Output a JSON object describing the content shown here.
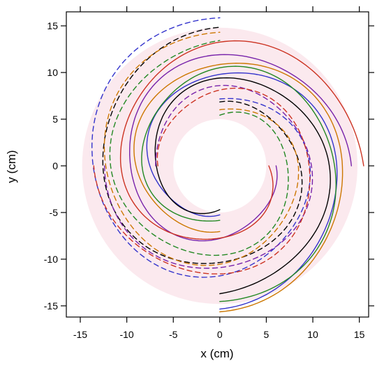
{
  "chart_data": {
    "type": "line",
    "title": "",
    "xlabel": "x (cm)",
    "ylabel": "y (cm)",
    "xlim": [
      -16.5,
      16
    ],
    "ylim": [
      -16.2,
      16.5
    ],
    "xticks": [
      -15,
      -10,
      -5,
      0,
      5,
      10,
      15
    ],
    "yticks": [
      -15,
      -10,
      -5,
      0,
      5,
      10,
      15
    ],
    "grid": false,
    "legend": "none",
    "background_band": {
      "color": "#fbe9ee",
      "inner_radius": 5.0,
      "outer_radius": 14.8
    },
    "series": [
      {
        "color": "#3333cc",
        "dash": "solid",
        "r0": 5.0,
        "r1": 15.1,
        "theta_start_deg": -90,
        "turns": 1.0
      },
      {
        "color": "#3333cc",
        "dash": "dashed",
        "r0": 7.3,
        "r1": 16.0,
        "theta_start_deg": 90,
        "turns": 1.0
      },
      {
        "color": "#000000",
        "dash": "solid",
        "r0": 4.8,
        "r1": 13.8,
        "theta_start_deg": -90,
        "turns": 1.0
      },
      {
        "color": "#000000",
        "dash": "dashed",
        "r0": 6.6,
        "r1": 14.6,
        "theta_start_deg": 90,
        "turns": 1.0
      },
      {
        "color": "#228822",
        "dash": "solid",
        "r0": 6.0,
        "r1": 14.7,
        "theta_start_deg": -90,
        "turns": 1.0
      },
      {
        "color": "#228822",
        "dash": "dashed",
        "r0": 5.5,
        "r1": 13.5,
        "theta_start_deg": 90,
        "turns": 1.0
      },
      {
        "color": "#cc7700",
        "dash": "solid",
        "r0": 6.8,
        "r1": 15.4,
        "theta_start_deg": -90,
        "turns": 1.0
      },
      {
        "color": "#cc7700",
        "dash": "dashed",
        "r0": 6.2,
        "r1": 14.5,
        "theta_start_deg": 90,
        "turns": 1.0
      },
      {
        "color": "#7722aa",
        "dash": "solid",
        "r0": 5.8,
        "r1": 13.9,
        "theta_start_deg": 0,
        "turns": 1.0
      },
      {
        "color": "#7722aa",
        "dash": "dashed",
        "r0": 7.0,
        "r1": 12.5,
        "theta_start_deg": 180,
        "turns": 1.0
      },
      {
        "color": "#cc3322",
        "dash": "solid",
        "r0": 5.4,
        "r1": 15.6,
        "theta_start_deg": 0,
        "turns": 1.0
      },
      {
        "color": "#cc3322",
        "dash": "dashed",
        "r0": 6.4,
        "r1": 13.3,
        "theta_start_deg": 180,
        "turns": 1.0
      }
    ]
  }
}
